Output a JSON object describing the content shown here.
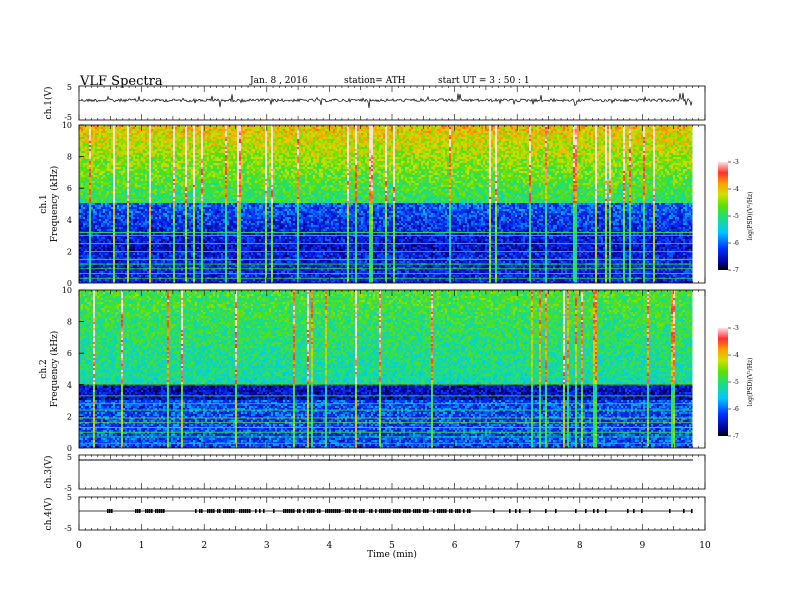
{
  "header": {
    "title": "VLF  Spectra",
    "date": "Jan.  8  , 2016",
    "station": "station= ATH",
    "start": "start  UT  =    3  : 50 : 1"
  },
  "chart_data": [
    {
      "type": "line",
      "name": "ch1-waveform",
      "ylabel": "ch.1(V)",
      "ylim": [
        -5,
        5
      ],
      "yticks": [
        "5",
        "-5"
      ],
      "xlim": [
        0,
        10
      ]
    },
    {
      "type": "heatmap",
      "name": "ch1-spectrogram",
      "ylabel": "Frequency  (kHz)",
      "channel": "ch.1",
      "ylim": [
        0,
        10
      ],
      "yticks": [
        "10",
        "8",
        "6",
        "4",
        "2",
        "0"
      ],
      "xlim": [
        0,
        9.8
      ],
      "colorbar": {
        "label": "log(PSD)(V²/Hz)",
        "range": [
          -7,
          -3
        ],
        "ticks": [
          "-3",
          "-4",
          "-5",
          "-6",
          "-7"
        ]
      }
    },
    {
      "type": "heatmap",
      "name": "ch2-spectrogram",
      "ylabel": "Frequency  (kHz)",
      "channel": "ch.2",
      "ylim": [
        0,
        10
      ],
      "yticks": [
        "10",
        "8",
        "6",
        "4",
        "2",
        "0"
      ],
      "xlim": [
        0,
        9.8
      ],
      "colorbar": {
        "label": "log(PSD)(V²/Hz)",
        "range": [
          -7,
          -3
        ],
        "ticks": [
          "-3",
          "-4",
          "-5",
          "-6",
          "-7"
        ]
      }
    },
    {
      "type": "line",
      "name": "ch3-waveform",
      "ylabel": "ch.3(V)",
      "ylim": [
        -5,
        5
      ],
      "yticks": [
        "5",
        "-5"
      ]
    },
    {
      "type": "line",
      "name": "ch4-waveform",
      "ylabel": "ch.4(V)",
      "ylim": [
        -5,
        5
      ],
      "yticks": [
        "5",
        "-5"
      ]
    }
  ],
  "xaxis": {
    "label": "Time  (min)",
    "range": [
      0,
      10
    ],
    "ticks": [
      "0",
      "1",
      "2",
      "3",
      "4",
      "5",
      "6",
      "7",
      "8",
      "9",
      "10"
    ]
  }
}
